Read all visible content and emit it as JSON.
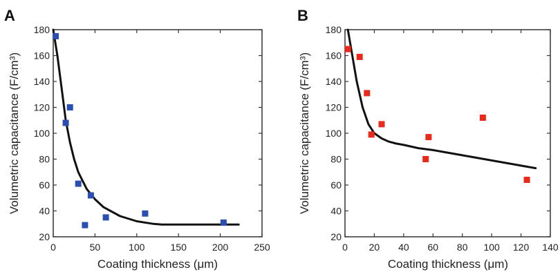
{
  "chart_data": [
    {
      "panel": "A",
      "type": "scatter",
      "xlabel": "Coating thickness (μm)",
      "ylabel": "Volumetric capacitance (F/cm³)",
      "xlim": [
        0,
        250
      ],
      "ylim": [
        20,
        180
      ],
      "xticks": [
        0,
        50,
        100,
        150,
        200,
        250
      ],
      "yticks": [
        20,
        40,
        60,
        80,
        100,
        120,
        140,
        160,
        180
      ],
      "grid": false,
      "series": [
        {
          "marker": "square",
          "color": "#2a4fb0",
          "x": [
            3,
            15,
            20,
            30,
            38,
            45,
            63,
            110,
            204
          ],
          "y": [
            175,
            108,
            120,
            61,
            29,
            52,
            35,
            38,
            31
          ]
        }
      ],
      "fit": {
        "color": "#111111",
        "x": [
          0,
          5,
          10,
          15,
          20,
          25,
          30,
          40,
          50,
          60,
          80,
          100,
          120,
          130,
          150,
          200,
          222
        ],
        "y": [
          180,
          160,
          135,
          110,
          93,
          80,
          70,
          57,
          49,
          43,
          36,
          32,
          30,
          29.5,
          29.5,
          29.5,
          29.5
        ]
      }
    },
    {
      "panel": "B",
      "type": "scatter",
      "xlabel": "Coating thickness (μm)",
      "ylabel": "Volumetric capacitance (F/cm³)",
      "xlim": [
        0,
        140
      ],
      "ylim": [
        20,
        180
      ],
      "xticks": [
        0,
        20,
        40,
        60,
        80,
        100,
        120,
        140
      ],
      "yticks": [
        20,
        40,
        60,
        80,
        100,
        120,
        140,
        160,
        180
      ],
      "grid": false,
      "series": [
        {
          "marker": "square",
          "color": "#e8291c",
          "x": [
            2,
            10,
            15,
            18,
            25,
            55,
            57,
            94,
            124
          ],
          "y": [
            165,
            159,
            131,
            99,
            107,
            80,
            97,
            112,
            64
          ]
        }
      ],
      "fit": {
        "color": "#111111",
        "x": [
          2,
          5,
          8,
          12,
          16,
          20,
          25,
          30,
          35,
          40,
          50,
          60,
          80,
          100,
          120,
          130
        ],
        "y": [
          180,
          160,
          140,
          120,
          107,
          100,
          96,
          93.5,
          92,
          91,
          88.5,
          87,
          83,
          79,
          75,
          73
        ]
      }
    }
  ],
  "panels": [
    {
      "label": "A"
    },
    {
      "label": "B"
    }
  ]
}
